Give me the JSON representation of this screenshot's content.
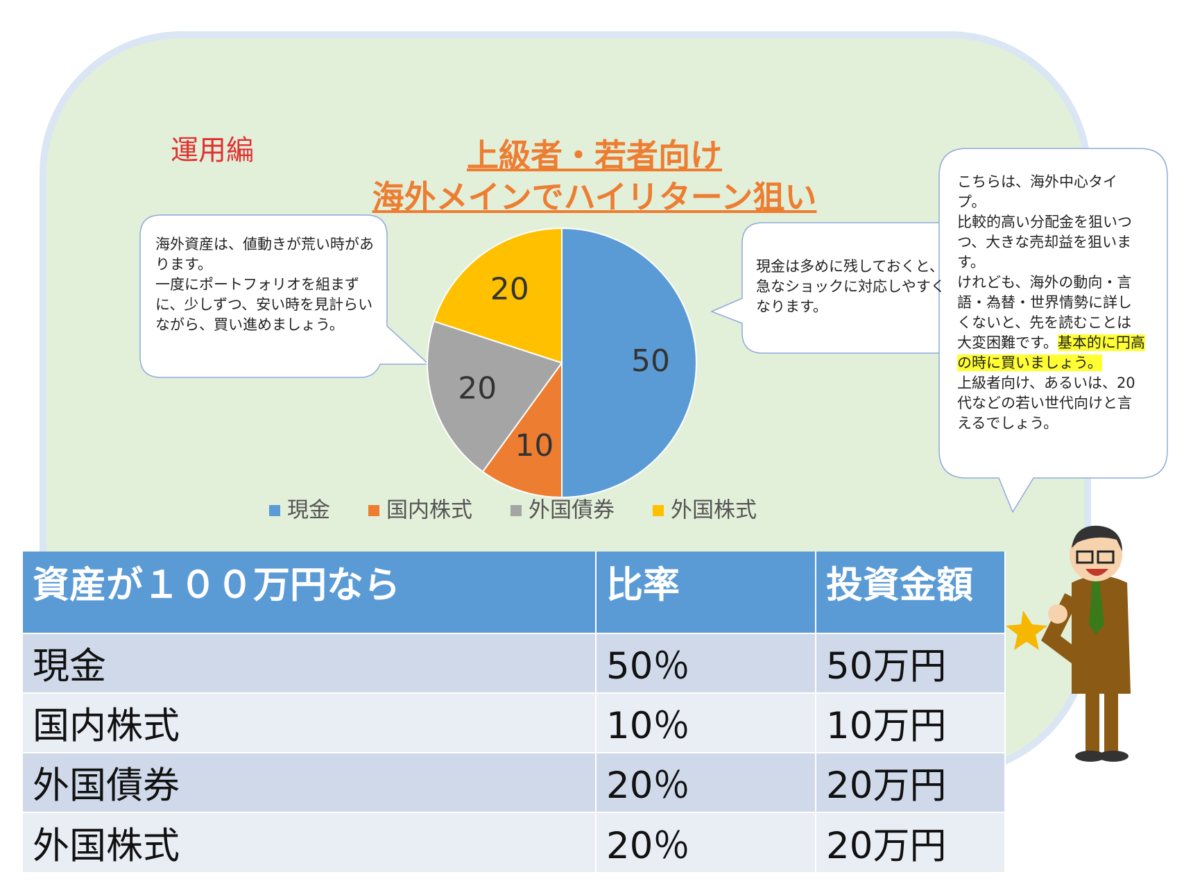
{
  "label": "運用編",
  "chart_data": {
    "type": "pie",
    "title": "上級者・若者向け",
    "subtitle": "海外メインでハイリターン狙い",
    "categories": [
      "現金",
      "国内株式",
      "外国債券",
      "外国株式"
    ],
    "values": [
      50,
      10,
      20,
      20
    ],
    "colors": [
      "#5b9bd5",
      "#ed7d31",
      "#a5a5a5",
      "#ffc000"
    ],
    "legend": "bottom"
  },
  "callouts": {
    "left": [
      "海外資産は、値動きが荒い時があります。",
      "一度にポートフォリオを組まずに、少しずつ、安い時を見計らいながら、買い進めましょう。"
    ],
    "middle": [
      "現金は多めに残しておくと、急なショックに対応しやすくなります。"
    ],
    "right": {
      "p1": "こちらは、海外中心タイプ。",
      "p2": "比較的高い分配金を狙いつつ、大きな売却益を狙います。",
      "p3": "けれども、海外の動向・言語・為替・世界情勢に詳しくないと、先を読むことは大変困難です。",
      "highlight": "基本的に円高の時に買いましょう。",
      "p4": "上級者向け、あるいは、20代などの若い世代向けと言えるでしょう。"
    }
  },
  "table": {
    "header": [
      "資産が１００万円なら",
      "比率",
      "投資金額"
    ],
    "rows": [
      [
        "現金",
        "50％",
        "50万円"
      ],
      [
        "国内株式",
        "10％",
        "10万円"
      ],
      [
        "外国債券",
        "20％",
        "20万円"
      ],
      [
        "外国株式",
        "20％",
        "20万円"
      ]
    ]
  }
}
